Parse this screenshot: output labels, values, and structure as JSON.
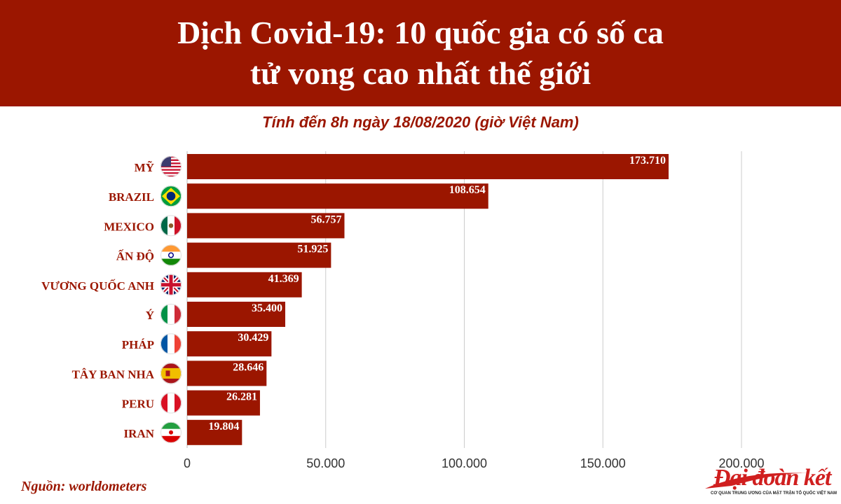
{
  "header": {
    "title_line1": "Dịch Covid-19: 10 quốc gia có số ca",
    "title_line2": "tử vong cao nhất thế giới"
  },
  "subtitle": "Tính đến 8h ngày 18/08/2020 (giờ Việt Nam)",
  "source": "Nguồn: worldometers",
  "logo": {
    "wordmark": "Đại đoàn kết",
    "tagline": "CƠ QUAN TRUNG ƯƠNG CỦA MẶT TRẬN TỔ QUỐC VIỆT NAM"
  },
  "colors": {
    "accent": "#9b1600",
    "bar": "#9b1600",
    "grid": "#cccccc"
  },
  "chart_data": {
    "type": "bar",
    "orientation": "horizontal",
    "categories": [
      "MỸ",
      "BRAZIL",
      "MEXICO",
      "ẤN ĐỘ",
      "VƯƠNG QUỐC ANH",
      "Ý",
      "PHÁP",
      "TÂY BAN NHA",
      "PERU",
      "IRAN"
    ],
    "flag_icons": [
      "usa-flag-icon",
      "brazil-flag-icon",
      "mexico-flag-icon",
      "india-flag-icon",
      "uk-flag-icon",
      "italy-flag-icon",
      "france-flag-icon",
      "spain-flag-icon",
      "peru-flag-icon",
      "iran-flag-icon"
    ],
    "values": [
      173710,
      108654,
      56757,
      51925,
      41369,
      35400,
      30429,
      28646,
      26281,
      19804
    ],
    "value_labels": [
      "173.710",
      "108.654",
      "56.757",
      "51.925",
      "41.369",
      "35.400",
      "30.429",
      "28.646",
      "26.281",
      "19.804"
    ],
    "xlim": [
      0,
      200000
    ],
    "xticks": [
      0,
      50000,
      100000,
      150000,
      200000
    ],
    "xtick_labels": [
      "0",
      "50.000",
      "100.000",
      "150.000",
      "200.000"
    ],
    "grid": true,
    "title": "Dịch Covid-19: 10 quốc gia có số ca tử vong cao nhất thế giới",
    "subtitle": "Tính đến 8h ngày 18/08/2020 (giờ Việt Nam)",
    "xlabel": "",
    "ylabel": ""
  }
}
